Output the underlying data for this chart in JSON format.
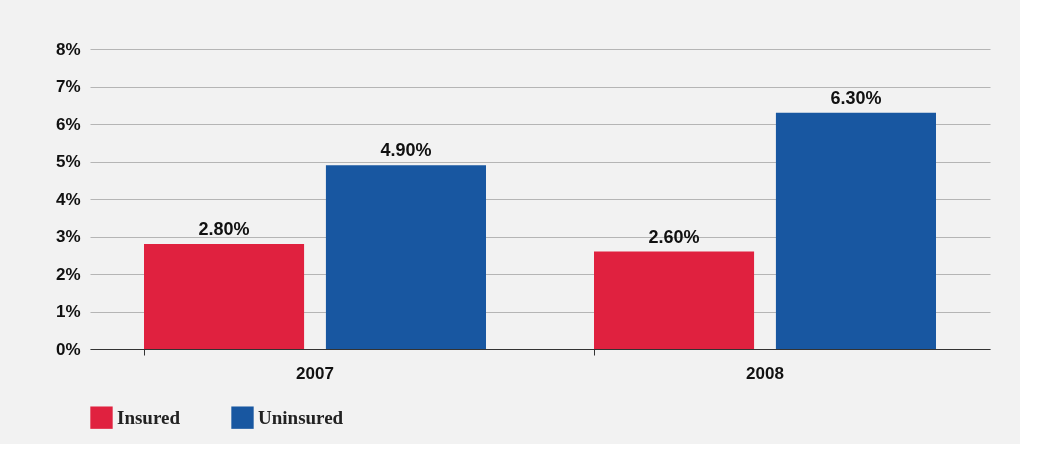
{
  "chart_data": {
    "type": "bar",
    "categories": [
      "2007",
      "2008"
    ],
    "series": [
      {
        "name": "Insured",
        "color": "#e0213f",
        "values": [
          2.8,
          2.6
        ],
        "value_labels": [
          "2.80%",
          "2.60%"
        ]
      },
      {
        "name": "Uninsured",
        "color": "#1857a1",
        "values": [
          4.9,
          6.3
        ],
        "value_labels": [
          "4.90%",
          "6.30%"
        ]
      }
    ],
    "ylim": [
      0,
      8
    ],
    "yticks": [
      {
        "value": 0,
        "label": "0%"
      },
      {
        "value": 1,
        "label": "1%"
      },
      {
        "value": 2,
        "label": "2%"
      },
      {
        "value": 3,
        "label": "3%"
      },
      {
        "value": 4,
        "label": "4%"
      },
      {
        "value": 5,
        "label": "5%"
      },
      {
        "value": 6,
        "label": "6%"
      },
      {
        "value": 7,
        "label": "7%"
      },
      {
        "value": 8,
        "label": "8%"
      }
    ],
    "grid": "y",
    "legend": "bottom left"
  }
}
